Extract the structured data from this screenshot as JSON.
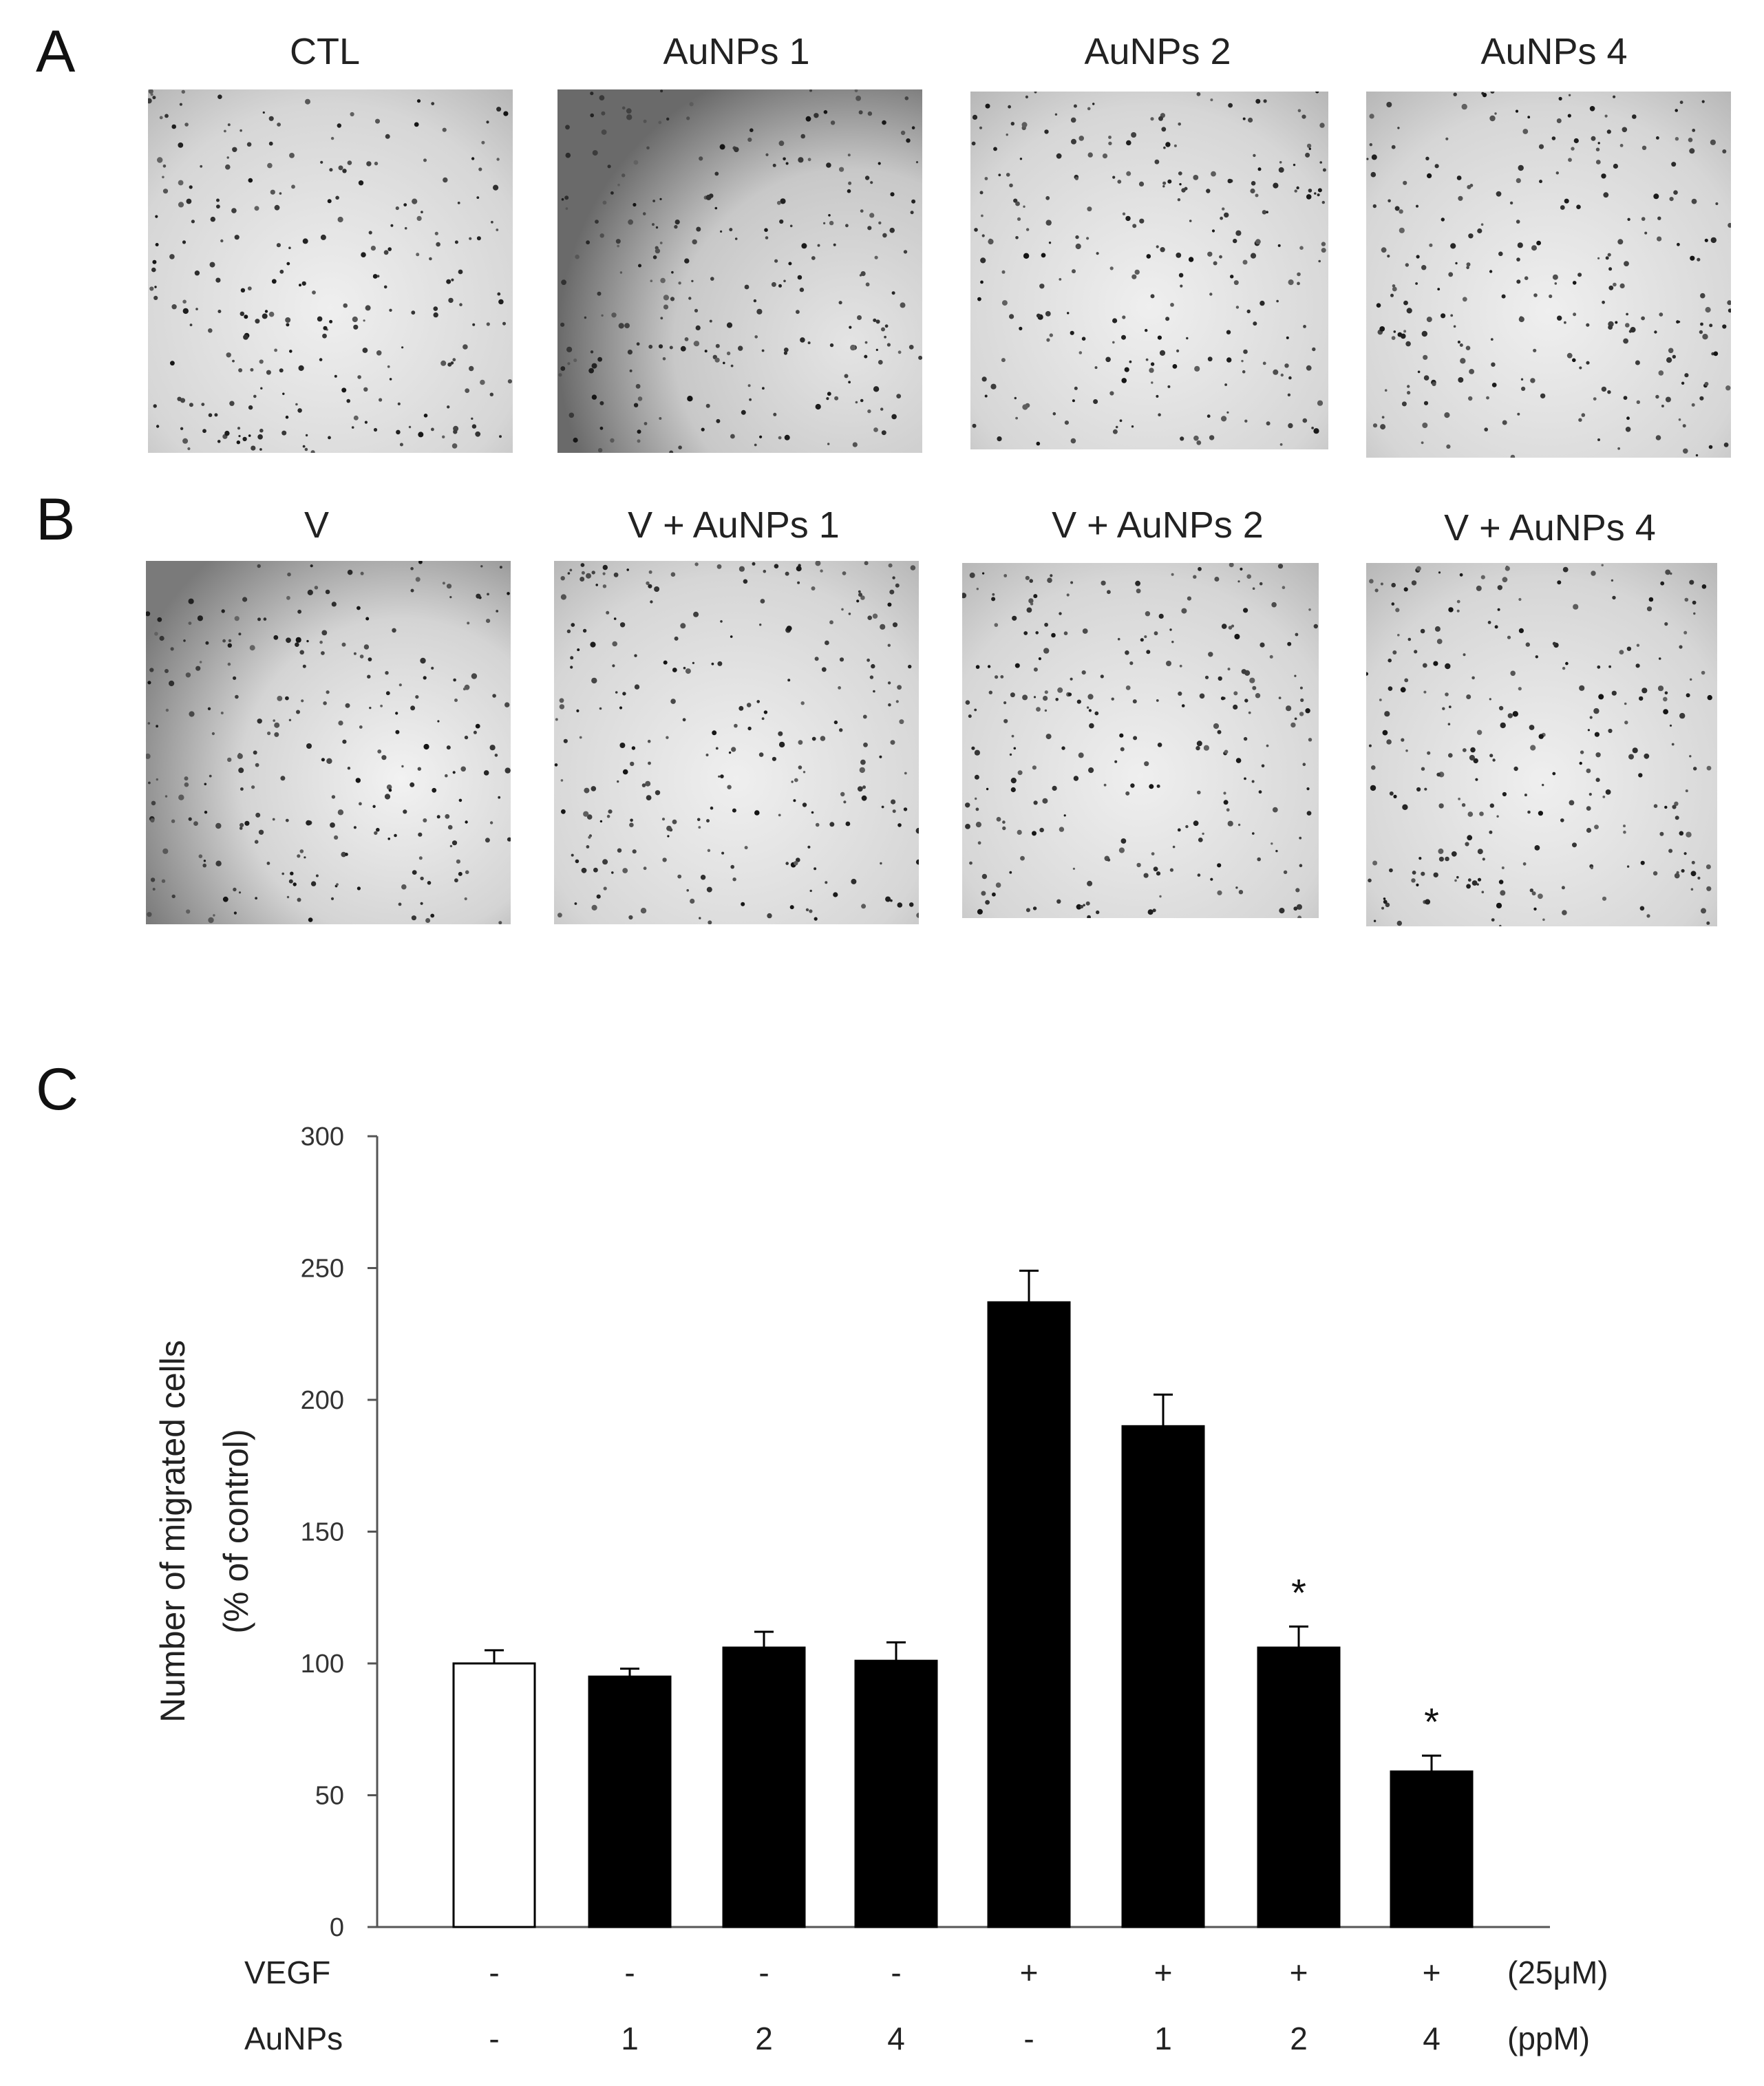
{
  "panels": {
    "a": {
      "letter": "A",
      "images": [
        {
          "title": "CTL"
        },
        {
          "title": "AuNPs 1"
        },
        {
          "title": "AuNPs 2"
        },
        {
          "title": "AuNPs 4"
        }
      ]
    },
    "b": {
      "letter": "B",
      "images": [
        {
          "title": "V"
        },
        {
          "title": "V + AuNPs 1"
        },
        {
          "title": "V + AuNPs 2"
        },
        {
          "title": "V + AuNPs 4"
        }
      ]
    },
    "c": {
      "letter": "C"
    }
  },
  "chart_data": {
    "type": "bar",
    "ylabel_line1": "Number of migrated cells",
    "ylabel_line2": "(% of control)",
    "ylim": [
      0,
      300
    ],
    "yticks": [
      0,
      50,
      100,
      150,
      200,
      250,
      300
    ],
    "values": [
      100,
      95,
      106,
      101,
      237,
      190,
      106,
      59
    ],
    "errors": [
      5,
      3,
      6,
      7,
      12,
      12,
      8,
      6
    ],
    "bar_fills": [
      "#ffffff",
      "#000000",
      "#000000",
      "#000000",
      "#000000",
      "#000000",
      "#000000",
      "#000000"
    ],
    "significance": [
      "",
      "",
      "",
      "",
      "",
      "",
      "*",
      "*"
    ],
    "rows": [
      {
        "label": "VEGF",
        "values": [
          "-",
          "-",
          "-",
          "-",
          "+",
          "+",
          "+",
          "+"
        ],
        "unit": "(25μM)"
      },
      {
        "label": "AuNPs",
        "values": [
          "-",
          "1",
          "2",
          "4",
          "-",
          "1",
          "2",
          "4"
        ],
        "unit": "(ppM)"
      }
    ]
  }
}
